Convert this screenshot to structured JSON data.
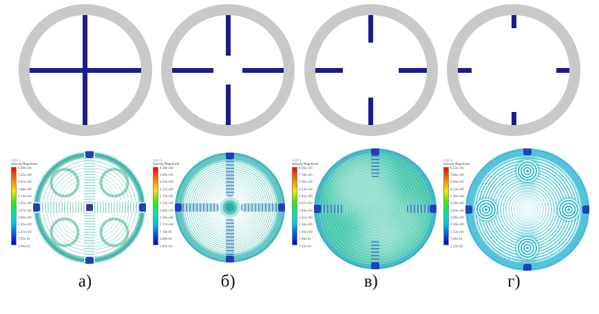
{
  "figure": {
    "background": "#ffffff",
    "colors": {
      "ring_gray": "#c9c9c9",
      "baffle_navy": "#1c1c8e",
      "baffle_tip_blue": "#1e3fbe",
      "field_teal": "#49c9ae",
      "field_cyan": "#55c3da",
      "legend_rainbow": [
        "#f50000",
        "#fa7800",
        "#f5e600",
        "#3ce600",
        "#00e6a0",
        "#00c8e6",
        "#0064e6",
        "#0000c8"
      ]
    },
    "schematics": {
      "description": "tank cross-sections with four radial baffles of decreasing length",
      "items": [
        {
          "id": "a",
          "baffle_len": "50%"
        },
        {
          "id": "b",
          "baffle_len": "37%"
        },
        {
          "id": "c",
          "baffle_len": "25%"
        },
        {
          "id": "d",
          "baffle_len": "12%"
        }
      ]
    },
    "plots": [
      {
        "id": "a",
        "name": "velocity-vector-field-full-baffles",
        "legend": {
          "brand": "ANSYS",
          "title": "Velocity Magnitude",
          "ticks": [
            "8.08e+00",
            "7.35e+00",
            "6.61e+00",
            "5.88e+00",
            "5.14e+00",
            "4.41e+00",
            "3.67e+00",
            "2.94e+00",
            "2.20e+00",
            "1.47e+00",
            "7.35e-01",
            "2.09e-04"
          ]
        }
      },
      {
        "id": "b",
        "name": "velocity-vector-field-long-baffles",
        "legend": {
          "brand": "ANSYS",
          "title": "Velocity Magnitude",
          "ticks": [
            "4.28e+00",
            "3.89e+00",
            "3.50e+00",
            "3.11e+00",
            "2.72e+00",
            "2.33e+00",
            "1.94e+00",
            "1.56e+00",
            "1.17e+00",
            "7.78e-01",
            "3.89e-01",
            "1.85e-04"
          ]
        }
      },
      {
        "id": "c",
        "name": "velocity-vector-field-short-baffles",
        "legend": {
          "brand": "ANSYS",
          "title": "Velocity Magnitude",
          "ticks": [
            "8.56e+00",
            "7.78e+00",
            "7.00e+00",
            "6.23e+00",
            "5.45e+00",
            "4.67e+00",
            "3.89e+00",
            "3.11e+00",
            "2.34e+00",
            "1.56e+00",
            "7.80e-01",
            "2.22e-04"
          ]
        }
      },
      {
        "id": "d",
        "name": "velocity-vector-field-stub-baffles",
        "legend": {
          "brand": "ANSYS",
          "title": "Velocity Magnitude",
          "ticks": [
            "8.43e+00",
            "7.66e+00",
            "6.89e+00",
            "6.13e+00",
            "5.36e+00",
            "4.59e+00",
            "3.83e+00",
            "3.06e+00",
            "2.30e+00",
            "1.53e+00",
            "7.66e-01",
            "2.22e-04"
          ]
        }
      }
    ],
    "labels": [
      "а)",
      "б)",
      "в)",
      "г)"
    ]
  }
}
